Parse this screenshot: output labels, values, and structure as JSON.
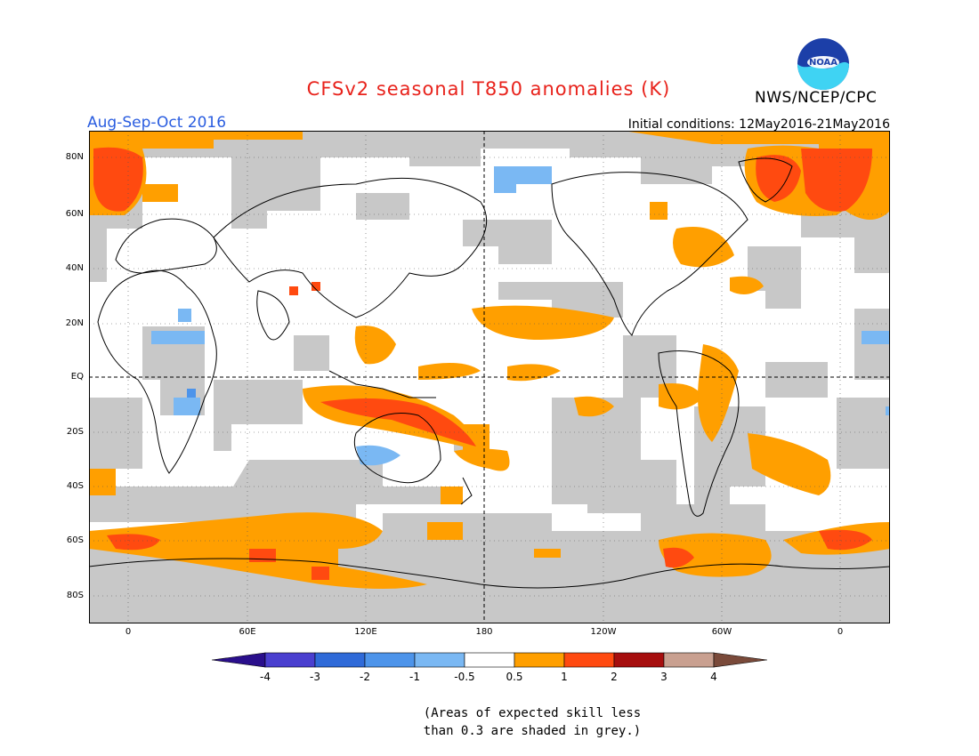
{
  "title": "CFSv2 seasonal T850 anomalies (K)",
  "season": "Aug-Sep-Oct 2016",
  "initial_conditions": "Initial conditions: 12May2016-21May2016",
  "agency": "NWS/NCEP/CPC",
  "logo_text": "NOAA",
  "lat_labels": [
    "80N",
    "60N",
    "40N",
    "20N",
    "EQ",
    "20S",
    "40S",
    "60S",
    "80S"
  ],
  "lon_labels": [
    "0",
    "60E",
    "120E",
    "180",
    "120W",
    "60W",
    "0"
  ],
  "colorbar": {
    "labels": [
      "-4",
      "-3",
      "-2",
      "-1",
      "-0.5",
      "0.5",
      "1",
      "2",
      "3",
      "4"
    ],
    "colors": [
      "#2a0f8c",
      "#4a3fcf",
      "#2f6ad8",
      "#4d94ea",
      "#7ab8f3",
      "#ffffff",
      "#ff9f00",
      "#ff4a10",
      "#a60e0e",
      "#c9a090",
      "#7a4a3a"
    ]
  },
  "note_line1": "(Areas of expected skill less",
  "note_line2": "than 0.3 are shaded in grey.)",
  "colors": {
    "grey": "#c8c8c8",
    "orange": "#ff9f00",
    "red": "#ff4a10",
    "lightblue": "#7ab8f3",
    "blue": "#4d94ea",
    "title": "#e8231c",
    "season": "#2a5de0"
  }
}
